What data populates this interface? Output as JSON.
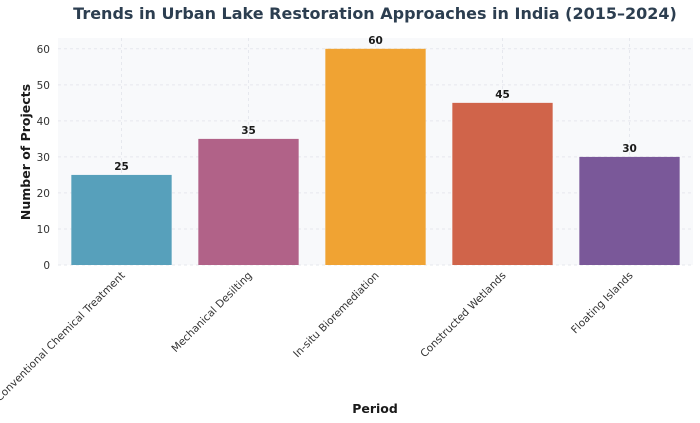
{
  "chart_data": {
    "type": "bar",
    "title": "Trends in Urban Lake Restoration Approaches in India (2015–2024)",
    "xlabel": "Period",
    "ylabel": "Number of Projects",
    "categories": [
      "Conventional Chemical Treatment",
      "Mechanical Desilting",
      "In-situ Bioremediation",
      "Constructed Wetlands",
      "Floating Islands"
    ],
    "values": [
      25,
      35,
      60,
      45,
      30
    ],
    "colors": [
      "#57a0bb",
      "#b16288",
      "#f0a333",
      "#d0644a",
      "#7a5899"
    ],
    "ylim": [
      0,
      63
    ],
    "yticks": [
      0,
      10,
      20,
      30,
      40,
      50,
      60
    ],
    "grid": true,
    "background": "#f8f9fb",
    "legend": "none"
  }
}
